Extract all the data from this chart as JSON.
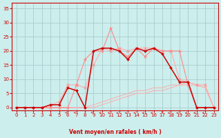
{
  "xlabel": "Vent moyen/en rafales ( km/h )",
  "x_ticks": [
    0,
    1,
    2,
    3,
    4,
    5,
    6,
    7,
    8,
    9,
    10,
    11,
    12,
    13,
    14,
    15,
    16,
    17,
    18,
    19,
    20,
    21,
    22,
    23
  ],
  "ylim": [
    -1,
    37
  ],
  "xlim": [
    -0.5,
    23.5
  ],
  "yticks": [
    0,
    5,
    10,
    15,
    20,
    25,
    30,
    35
  ],
  "bg_color": "#cceeed",
  "grid_color": "#aacccc",
  "line_color_dark": "#cc0000",
  "line_color_mid": "#ff8888",
  "line_color_light": "#ffaaaa",
  "arrow_color": "#dd4444",
  "vent_moyen_x": [
    0,
    1,
    2,
    3,
    4,
    5,
    6,
    7,
    8,
    9,
    10,
    11,
    12,
    13,
    14,
    15,
    16,
    17,
    18,
    19,
    20,
    21,
    22,
    23
  ],
  "vent_moyen_y": [
    0,
    0,
    0,
    0,
    0,
    0,
    0,
    0,
    0,
    0,
    1,
    2,
    3,
    4,
    5,
    5,
    6,
    6,
    7,
    8,
    9,
    8,
    7,
    0
  ],
  "vent_rafale_x": [
    0,
    1,
    2,
    3,
    4,
    5,
    6,
    7,
    8,
    9,
    10,
    11,
    12,
    13,
    14,
    15,
    16,
    17,
    18,
    19,
    20,
    21,
    22,
    23
  ],
  "vent_rafale_y": [
    0,
    0,
    0,
    0,
    0,
    0,
    0,
    0,
    0,
    1,
    2,
    3,
    4,
    5,
    6,
    6,
    7,
    7,
    8,
    8,
    8,
    8,
    7,
    0
  ],
  "line_pink1_x": [
    0,
    1,
    2,
    3,
    4,
    5,
    6,
    7,
    8,
    9,
    10,
    11,
    12,
    13,
    14,
    15,
    16,
    17,
    18,
    19,
    20,
    21,
    22,
    23
  ],
  "line_pink1_y": [
    0,
    0,
    0,
    0,
    1,
    2,
    8,
    8,
    7,
    15,
    21,
    20,
    21,
    20,
    21,
    21,
    21,
    20,
    20,
    10,
    9,
    8,
    8,
    0
  ],
  "line_pink2_x": [
    0,
    1,
    2,
    3,
    4,
    5,
    6,
    7,
    8,
    9,
    10,
    11,
    12,
    13,
    14,
    15,
    16,
    17,
    18,
    19,
    20,
    21,
    22,
    23
  ],
  "line_pink2_y": [
    0,
    0,
    0,
    0,
    0,
    0,
    0,
    8,
    17,
    20,
    20,
    28,
    20,
    18,
    21,
    18,
    21,
    20,
    20,
    20,
    8,
    0,
    0,
    0
  ],
  "line_dark_x": [
    0,
    1,
    2,
    3,
    4,
    5,
    6,
    7,
    8,
    9,
    10,
    11,
    12,
    13,
    14,
    15,
    16,
    17,
    18,
    19,
    20,
    21,
    22,
    23
  ],
  "line_dark_y": [
    0,
    0,
    0,
    0,
    1,
    1,
    7,
    6,
    0,
    20,
    21,
    21,
    20,
    17,
    21,
    20,
    21,
    19,
    14,
    9,
    9,
    0,
    0,
    0
  ],
  "arrows_x": [
    6,
    7,
    9,
    10,
    11,
    12,
    13,
    14,
    15,
    16,
    17,
    18,
    19,
    20,
    21,
    22
  ],
  "arrows_ang": [
    180,
    180,
    180,
    225,
    225,
    225,
    225,
    225,
    225,
    225,
    270,
    225,
    225,
    225,
    225,
    225
  ]
}
